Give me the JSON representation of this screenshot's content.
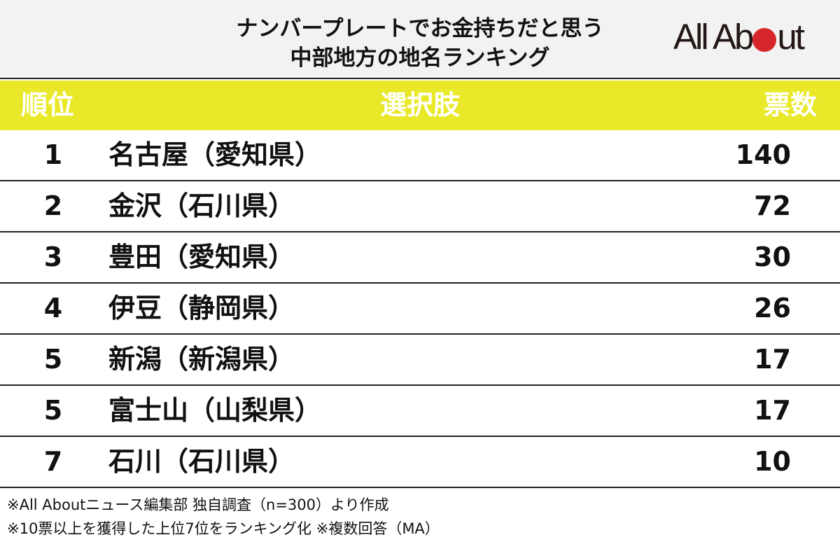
{
  "header": {
    "title_line1": "ナンバープレートでお金持ちだと思う",
    "title_line2": "中部地方の地名ランキング",
    "logo": {
      "text_before_dot": "All Ab",
      "text_after_dot": "ut",
      "dot_color": "#d7262b",
      "full_text": "All About"
    }
  },
  "table": {
    "columns": [
      "順位",
      "選択肢",
      "票数"
    ],
    "header_color": "#e9e92a",
    "rows": [
      {
        "rank": "1",
        "choice": "名古屋（愛知県）",
        "votes": "140"
      },
      {
        "rank": "2",
        "choice": "金沢（石川県）",
        "votes": "72"
      },
      {
        "rank": "3",
        "choice": "豊田（愛知県）",
        "votes": "30"
      },
      {
        "rank": "4",
        "choice": "伊豆（静岡県）",
        "votes": "26"
      },
      {
        "rank": "5",
        "choice": "新潟（新潟県）",
        "votes": "17"
      },
      {
        "rank": "5",
        "choice": "富士山（山梨県）",
        "votes": "17"
      },
      {
        "rank": "7",
        "choice": "石川（石川県）",
        "votes": "10"
      }
    ]
  },
  "notes": [
    "※All Aboutニュース編集部 独自調査（n=300）より作成",
    "※10票以上を獲得した上位7位をランキング化 ※複数回答（MA）"
  ],
  "chart_data": {
    "type": "table",
    "title": "ナンバープレートでお金持ちだと思う中部地方の地名ランキング",
    "columns": [
      "順位",
      "選択肢",
      "票数"
    ],
    "categories": [
      "名古屋（愛知県）",
      "金沢（石川県）",
      "豊田（愛知県）",
      "伊豆（静岡県）",
      "新潟（新潟県）",
      "富士山（山梨県）",
      "石川（石川県）"
    ],
    "ranks": [
      1,
      2,
      3,
      4,
      5,
      5,
      7
    ],
    "values": [
      140,
      72,
      30,
      26,
      17,
      17,
      10
    ],
    "ylabel": "票数",
    "annotations": [
      "※All Aboutニュース編集部 独自調査（n=300）より作成",
      "※10票以上を獲得した上位7位をランキング化 ※複数回答（MA）"
    ]
  }
}
